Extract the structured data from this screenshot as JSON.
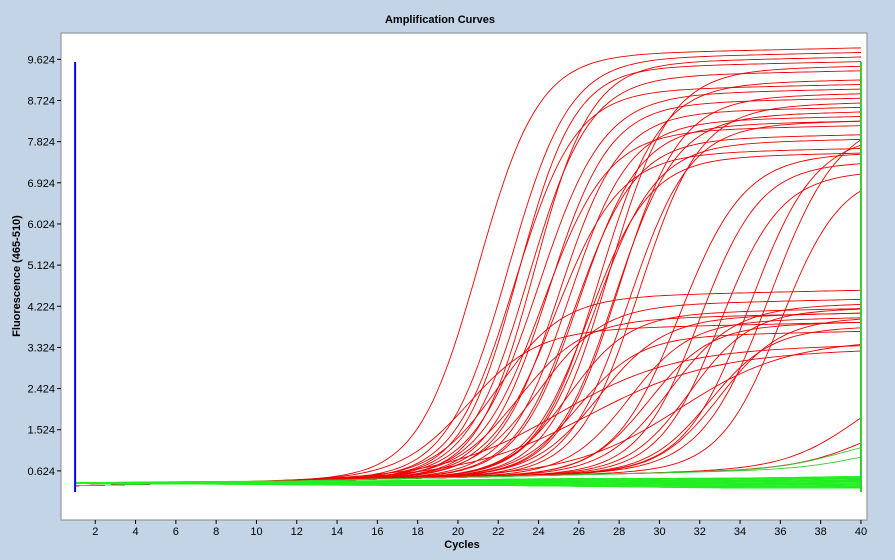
{
  "chart_data": {
    "type": "line",
    "title": "Amplification Curves",
    "xlabel": "Cycles",
    "ylabel": "Fluorescence (465-510)",
    "xlim": [
      0.3,
      40.3
    ],
    "ylim": [
      -0.45,
      10.2
    ],
    "x_ticks": [
      2,
      4,
      6,
      8,
      10,
      12,
      14,
      16,
      18,
      20,
      22,
      24,
      26,
      28,
      30,
      32,
      34,
      36,
      38,
      40
    ],
    "y_ticks": [
      0.624,
      1.524,
      2.424,
      3.324,
      4.224,
      5.124,
      6.024,
      6.924,
      7.824,
      8.724,
      9.624
    ],
    "y_tick_labels": [
      "0.624",
      "1.524",
      "2.424",
      "3.324",
      "4.224",
      "5.124",
      "6.024",
      "6.924",
      "7.824",
      "8.724",
      "9.624"
    ],
    "x_tick_labels": [
      "2",
      "4",
      "6",
      "8",
      "10",
      "12",
      "14",
      "16",
      "18",
      "20",
      "22",
      "24",
      "26",
      "28",
      "30",
      "32",
      "34",
      "36",
      "38",
      "40"
    ],
    "grid": false,
    "legend": "none",
    "start_marker": {
      "x": 1,
      "color": "#0000ff"
    },
    "end_marker": {
      "x": 40,
      "color": "#33cc33"
    },
    "colors": {
      "positive": "#ee0000",
      "negative": "#22ee22",
      "late": "#33cc33"
    },
    "baseline": 0.3,
    "series_groups": [
      {
        "color_key": "positive",
        "plateaus": [
          9.5,
          9.4,
          9.2,
          9.0,
          8.6,
          8.4,
          8.2,
          8.0,
          7.9,
          7.8,
          7.6,
          7.2,
          8.8,
          9.1,
          8.5,
          7.9,
          8.3,
          9.3,
          8.7,
          7.5,
          8.1,
          7.3
        ],
        "ct": [
          21.0,
          22.5,
          23.0,
          23.5,
          24.0,
          24.5,
          25.0,
          25.5,
          26.0,
          24.2,
          25.8,
          26.5,
          27.0,
          27.5,
          28.0,
          28.5,
          29.0,
          23.8,
          22.8,
          26.8,
          27.8,
          24.8
        ],
        "slope": [
          1.5,
          1.5,
          1.4,
          1.5,
          1.6,
          1.5,
          1.5,
          1.5,
          1.5,
          1.6,
          1.5,
          1.5,
          1.5,
          1.5,
          1.5,
          1.5,
          1.5,
          1.4,
          1.5,
          1.5,
          1.5,
          1.6
        ]
      },
      {
        "color_key": "positive",
        "plateaus": [
          7.2,
          7.0,
          6.8,
          7.6,
          8.0,
          6.8
        ],
        "ct": [
          31.0,
          32.0,
          33.0,
          34.5,
          35.5,
          36.0
        ],
        "slope": [
          1.6,
          1.5,
          1.5,
          1.6,
          1.7,
          1.5
        ]
      },
      {
        "color_key": "positive",
        "plateaus": [
          4.2,
          4.0,
          3.8,
          3.7,
          3.6,
          3.5,
          3.9,
          3.8,
          3.4,
          3.6,
          3.5,
          3.7,
          3.3
        ],
        "ct": [
          22.0,
          24.0,
          25.5,
          27.0,
          28.5,
          29.5,
          30.5,
          31.5,
          32.5,
          33.0,
          20.5,
          23.0,
          26.0
        ],
        "slope": [
          1.6,
          1.6,
          1.5,
          1.6,
          1.5,
          1.5,
          1.6,
          1.5,
          1.5,
          1.5,
          1.7,
          1.6,
          1.5
        ]
      },
      {
        "color_key": "positive",
        "plateaus": [
          3.0,
          2.9,
          3.1
        ],
        "ct": [
          25.0,
          26.5,
          31.0
        ],
        "slope": [
          2.8,
          3.0,
          2.6
        ]
      },
      {
        "color_key": "positive",
        "plateaus": [
          2.4,
          1.6
        ],
        "ct": [
          39.8,
          40.5
        ],
        "slope": [
          1.8,
          1.8
        ]
      },
      {
        "color_key": "late",
        "plateaus": [
          1.0,
          0.8
        ],
        "ct": [
          39.0,
          40.0
        ],
        "slope": [
          1.6,
          1.6
        ]
      },
      {
        "color_key": "negative",
        "count": 26,
        "start": 0.36,
        "end_range": [
          0.24,
          0.5
        ]
      }
    ]
  }
}
